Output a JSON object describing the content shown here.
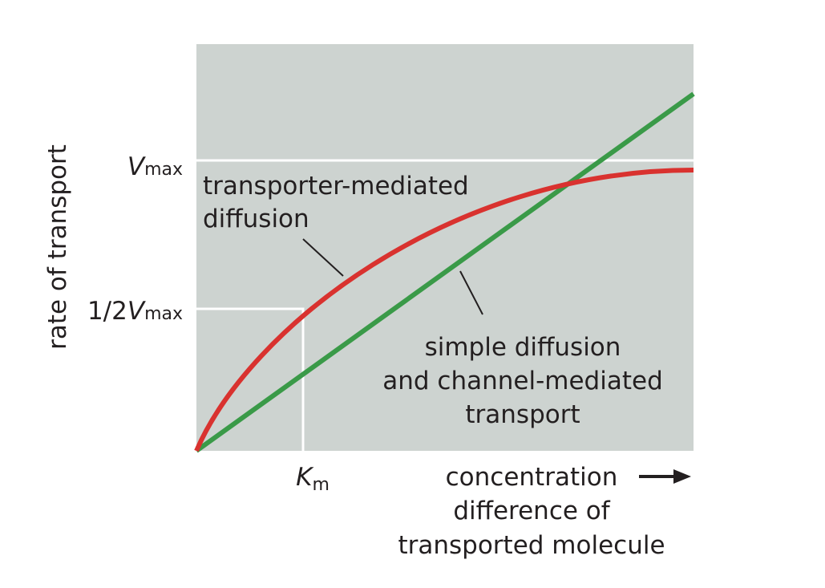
{
  "y_axis_label": "rate of transport",
  "vmax_label": {
    "symbol": "V",
    "subscript": "max"
  },
  "half_vmax_label": {
    "prefix": "1/2",
    "symbol": "V",
    "subscript": "max"
  },
  "km_label": {
    "symbol": "K",
    "subscript": "m"
  },
  "x_axis_label": [
    "concentration",
    "difference of",
    "transported molecule"
  ],
  "transporter_label": [
    "transporter-mediated",
    "diffusion"
  ],
  "simple_label": [
    "simple diffusion",
    "and channel-mediated",
    "transport"
  ]
}
